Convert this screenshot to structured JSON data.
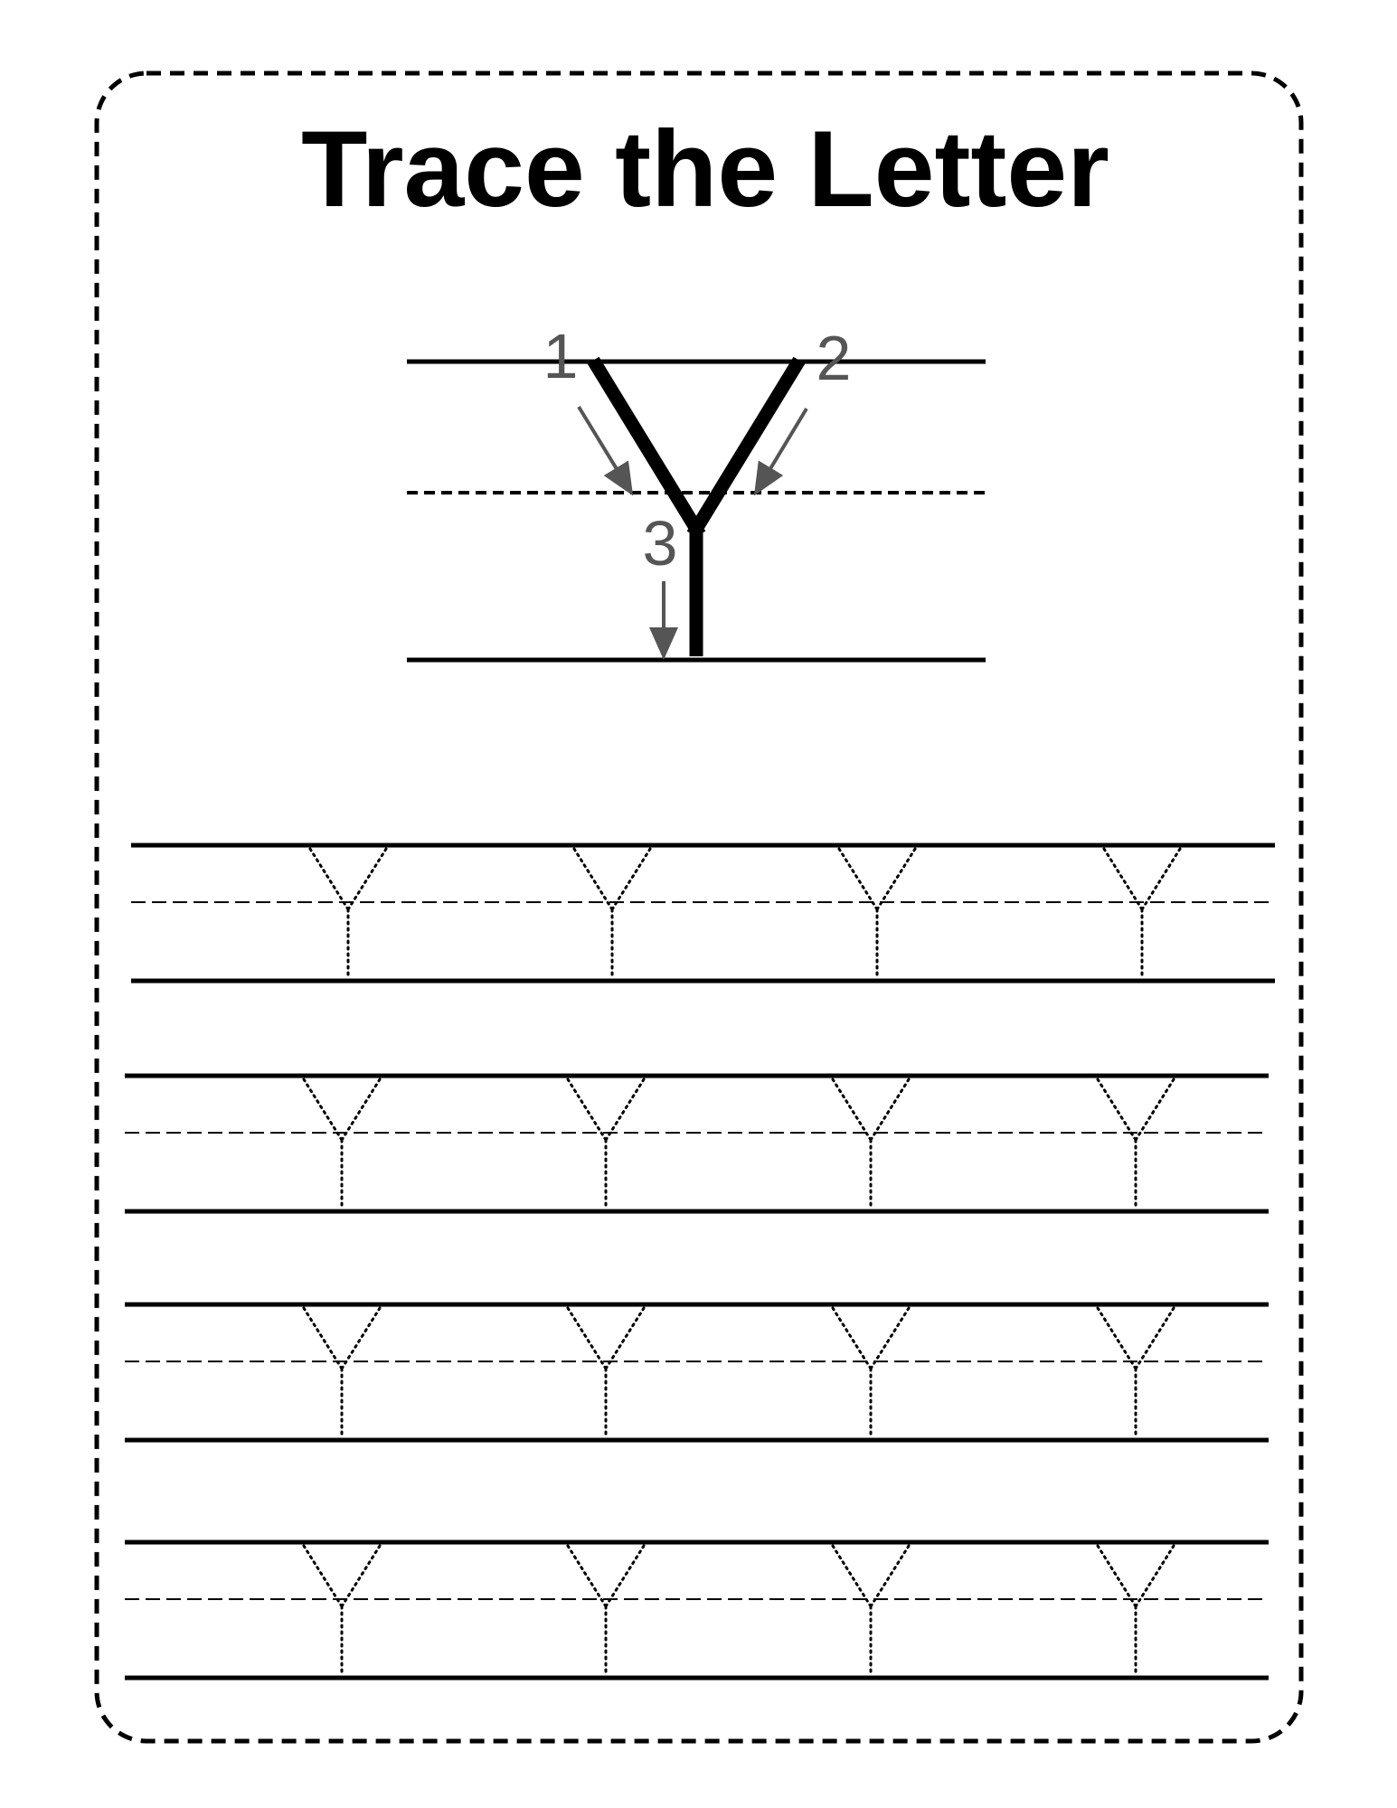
{
  "worksheet": {
    "title": "Trace the Letter",
    "letter": "Y",
    "stroke_steps": [
      "1",
      "2",
      "3"
    ],
    "practice_rows": 4,
    "letters_per_row": 4,
    "colors": {
      "border": "#000000",
      "guide_lines": "#000000",
      "model_letter": "#000000",
      "arrows": "#555555",
      "dotted_letters": "#000000"
    }
  }
}
